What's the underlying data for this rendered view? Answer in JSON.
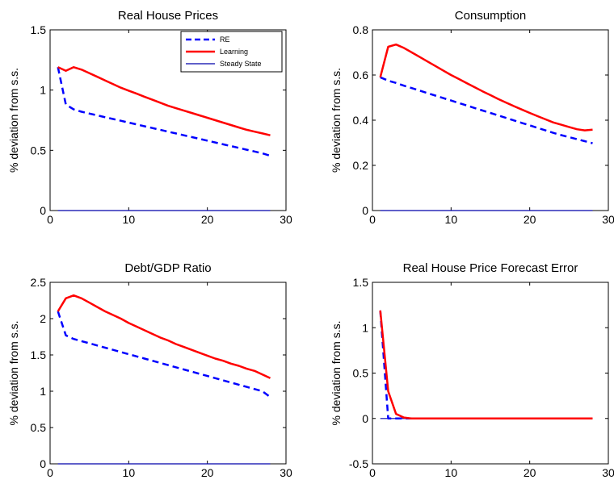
{
  "figure": {
    "legend": {
      "entries": [
        {
          "label": "RE",
          "color": "#0000ff",
          "style": "dashed"
        },
        {
          "label": "Learning",
          "color": "#ff0000",
          "style": "solid"
        },
        {
          "label": "Steady State",
          "color": "#0000aa",
          "style": "thin"
        }
      ]
    }
  },
  "chart_data": [
    {
      "type": "line",
      "title": "Real House Prices",
      "xlabel": "",
      "ylabel": "% deviation from s.s.",
      "xlim": [
        0,
        30
      ],
      "ylim": [
        0,
        1.5
      ],
      "xticks": [
        "0",
        "10",
        "20",
        "30"
      ],
      "yticks": [
        "0",
        "0.5",
        "1",
        "1.5"
      ],
      "legend": "top-right",
      "series": [
        {
          "name": "RE",
          "color": "#0000ff",
          "style": "dashed",
          "x": [
            1,
            2,
            3,
            4,
            5,
            6,
            7,
            8,
            9,
            10,
            11,
            12,
            13,
            14,
            15,
            16,
            17,
            18,
            19,
            20,
            21,
            22,
            23,
            24,
            25,
            26,
            27,
            28
          ],
          "values": [
            1.19,
            0.88,
            0.84,
            0.82,
            0.805,
            0.79,
            0.775,
            0.76,
            0.745,
            0.73,
            0.715,
            0.7,
            0.685,
            0.67,
            0.655,
            0.64,
            0.625,
            0.61,
            0.595,
            0.58,
            0.565,
            0.55,
            0.535,
            0.52,
            0.505,
            0.49,
            0.475,
            0.455
          ]
        },
        {
          "name": "Learning",
          "color": "#ff0000",
          "style": "solid",
          "x": [
            1,
            2,
            3,
            4,
            5,
            6,
            7,
            8,
            9,
            10,
            11,
            12,
            13,
            14,
            15,
            16,
            17,
            18,
            19,
            20,
            21,
            22,
            23,
            24,
            25,
            26,
            27,
            28
          ],
          "values": [
            1.19,
            1.16,
            1.19,
            1.17,
            1.14,
            1.11,
            1.08,
            1.05,
            1.02,
            0.995,
            0.97,
            0.945,
            0.92,
            0.895,
            0.87,
            0.85,
            0.83,
            0.81,
            0.79,
            0.77,
            0.75,
            0.73,
            0.71,
            0.69,
            0.67,
            0.655,
            0.64,
            0.625
          ]
        },
        {
          "name": "Steady State",
          "color": "#0000aa",
          "style": "thin",
          "x": [
            1,
            28
          ],
          "values": [
            0,
            0
          ]
        }
      ]
    },
    {
      "type": "line",
      "title": "Consumption",
      "xlabel": "",
      "ylabel": "% deviation from s.s.",
      "xlim": [
        0,
        30
      ],
      "ylim": [
        0,
        0.8
      ],
      "xticks": [
        "0",
        "10",
        "20",
        "30"
      ],
      "yticks": [
        "0",
        "0.2",
        "0.4",
        "0.6",
        "0.8"
      ],
      "series": [
        {
          "name": "RE",
          "color": "#0000ff",
          "style": "dashed",
          "x": [
            1,
            2,
            3,
            4,
            5,
            6,
            7,
            8,
            9,
            10,
            11,
            12,
            13,
            14,
            15,
            16,
            17,
            18,
            19,
            20,
            21,
            22,
            23,
            24,
            25,
            26,
            27,
            28
          ],
          "values": [
            0.59,
            0.575,
            0.565,
            0.553,
            0.542,
            0.531,
            0.52,
            0.509,
            0.498,
            0.487,
            0.476,
            0.465,
            0.454,
            0.443,
            0.432,
            0.421,
            0.41,
            0.399,
            0.388,
            0.377,
            0.366,
            0.355,
            0.344,
            0.334,
            0.325,
            0.316,
            0.307,
            0.298
          ]
        },
        {
          "name": "Learning",
          "color": "#ff0000",
          "style": "solid",
          "x": [
            1,
            2,
            3,
            4,
            5,
            6,
            7,
            8,
            9,
            10,
            11,
            12,
            13,
            14,
            15,
            16,
            17,
            18,
            19,
            20,
            21,
            22,
            23,
            24,
            25,
            26,
            27,
            28
          ],
          "values": [
            0.59,
            0.725,
            0.735,
            0.72,
            0.7,
            0.68,
            0.66,
            0.64,
            0.62,
            0.6,
            0.582,
            0.564,
            0.546,
            0.528,
            0.511,
            0.494,
            0.478,
            0.462,
            0.447,
            0.432,
            0.418,
            0.404,
            0.39,
            0.38,
            0.37,
            0.36,
            0.355,
            0.358
          ]
        },
        {
          "name": "Steady State",
          "color": "#0000aa",
          "style": "thin",
          "x": [
            1,
            28
          ],
          "values": [
            0,
            0
          ]
        }
      ]
    },
    {
      "type": "line",
      "title": "Debt/GDP Ratio",
      "xlabel": "",
      "ylabel": "% deviation from s.s.",
      "xlim": [
        0,
        30
      ],
      "ylim": [
        0,
        2.5
      ],
      "xticks": [
        "0",
        "10",
        "20",
        "30"
      ],
      "yticks": [
        "0",
        "0.5",
        "1",
        "1.5",
        "2",
        "2.5"
      ],
      "series": [
        {
          "name": "RE",
          "color": "#0000ff",
          "style": "dashed",
          "x": [
            1,
            2,
            3,
            4,
            5,
            6,
            7,
            8,
            9,
            10,
            11,
            12,
            13,
            14,
            15,
            16,
            17,
            18,
            19,
            20,
            21,
            22,
            23,
            24,
            25,
            26,
            27,
            28
          ],
          "values": [
            2.1,
            1.77,
            1.72,
            1.69,
            1.66,
            1.63,
            1.6,
            1.57,
            1.54,
            1.51,
            1.48,
            1.45,
            1.42,
            1.39,
            1.36,
            1.33,
            1.3,
            1.27,
            1.24,
            1.21,
            1.18,
            1.15,
            1.12,
            1.09,
            1.06,
            1.03,
            1.0,
            0.92
          ]
        },
        {
          "name": "Learning",
          "color": "#ff0000",
          "style": "solid",
          "x": [
            1,
            2,
            3,
            4,
            5,
            6,
            7,
            8,
            9,
            10,
            11,
            12,
            13,
            14,
            15,
            16,
            17,
            18,
            19,
            20,
            21,
            22,
            23,
            24,
            25,
            26,
            27,
            28
          ],
          "values": [
            2.1,
            2.28,
            2.32,
            2.28,
            2.22,
            2.16,
            2.1,
            2.05,
            2.0,
            1.94,
            1.89,
            1.84,
            1.79,
            1.74,
            1.7,
            1.65,
            1.61,
            1.57,
            1.53,
            1.49,
            1.45,
            1.42,
            1.38,
            1.35,
            1.31,
            1.28,
            1.23,
            1.18
          ]
        },
        {
          "name": "Steady State",
          "color": "#0000aa",
          "style": "thin",
          "x": [
            1,
            28
          ],
          "values": [
            0,
            0
          ]
        }
      ]
    },
    {
      "type": "line",
      "title": "Real House Price Forecast Error",
      "xlabel": "",
      "ylabel": "% deviation from s.s.",
      "xlim": [
        0,
        30
      ],
      "ylim": [
        -0.5,
        1.5
      ],
      "xticks": [
        "0",
        "10",
        "20",
        "30"
      ],
      "yticks": [
        "-0.5",
        "0",
        "0.5",
        "1",
        "1.5"
      ],
      "series": [
        {
          "name": "RE",
          "color": "#0000ff",
          "style": "dashed",
          "x": [
            1,
            2,
            3,
            4,
            5,
            10,
            15,
            20,
            25,
            28
          ],
          "values": [
            1.19,
            0,
            0,
            0,
            0,
            0,
            0,
            0,
            0,
            0
          ]
        },
        {
          "name": "Learning",
          "color": "#ff0000",
          "style": "solid",
          "x": [
            1,
            2,
            3,
            4,
            5,
            6,
            10,
            15,
            20,
            25,
            28
          ],
          "values": [
            1.19,
            0.3,
            0.05,
            0.01,
            0,
            0,
            0,
            0,
            0,
            0,
            0
          ]
        },
        {
          "name": "Steady State",
          "color": "#0000aa",
          "style": "thin",
          "x": [
            1,
            28
          ],
          "values": [
            0,
            0
          ]
        }
      ]
    }
  ]
}
